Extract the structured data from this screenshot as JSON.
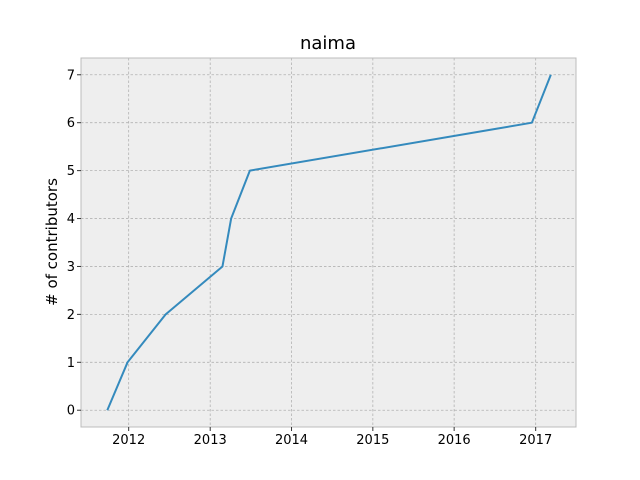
{
  "chart_data": {
    "type": "line",
    "title": "naima",
    "xlabel": "",
    "ylabel": "# of contributors",
    "xlim": [
      "2011-06-01",
      "2017-07-01"
    ],
    "ylim": [
      -0.35,
      7.35
    ],
    "x_ticks": [
      {
        "label": "2012",
        "date": "2012-01-01"
      },
      {
        "label": "2013",
        "date": "2013-01-01"
      },
      {
        "label": "2014",
        "date": "2014-01-01"
      },
      {
        "label": "2015",
        "date": "2015-01-01"
      },
      {
        "label": "2016",
        "date": "2016-01-01"
      },
      {
        "label": "2017",
        "date": "2017-01-01"
      }
    ],
    "y_ticks": [
      0,
      1,
      2,
      3,
      4,
      5,
      6,
      7
    ],
    "grid": true,
    "series": [
      {
        "color": "#348abd",
        "points": [
          {
            "x": "2011-09-27",
            "y": 0
          },
          {
            "x": "2011-12-27",
            "y": 1
          },
          {
            "x": "2012-06-15",
            "y": 2
          },
          {
            "x": "2013-02-25",
            "y": 3
          },
          {
            "x": "2013-04-05",
            "y": 4
          },
          {
            "x": "2013-06-28",
            "y": 5
          },
          {
            "x": "2016-12-15",
            "y": 6
          },
          {
            "x": "2017-03-10",
            "y": 7
          }
        ]
      }
    ],
    "colors": {
      "plot_background": "#eeeeee",
      "grid": "#b2b2b2",
      "frame": "#bcbcbc"
    }
  }
}
